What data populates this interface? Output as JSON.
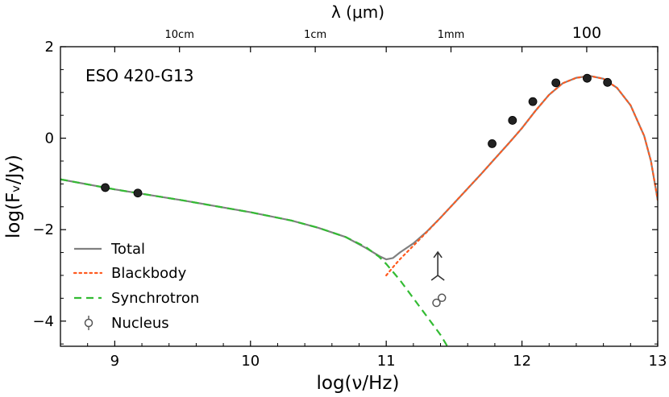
{
  "chart_data": {
    "type": "scatter",
    "annotation": "ESO 420-G13",
    "xlabel": "log(ν/Hz)",
    "ylabel": "log(Fᵥ/Jy)",
    "top_axis_label": "λ (μm)",
    "xlim": [
      8.6,
      13.0
    ],
    "ylim": [
      -4.55,
      2.0
    ],
    "x_ticks": [
      "9",
      "10",
      "11",
      "12",
      "13"
    ],
    "x_tick_values": [
      9,
      10,
      11,
      12,
      13
    ],
    "y_ticks": [
      "2",
      "0",
      "−2",
      "−4"
    ],
    "y_tick_values": [
      2,
      0,
      -2,
      -4
    ],
    "top_ticks": [
      {
        "label": "10cm",
        "log_nu": 9.477
      },
      {
        "label": "1cm",
        "log_nu": 10.477
      },
      {
        "label": "1mm",
        "log_nu": 11.477
      },
      {
        "label": "100",
        "log_nu": 12.477
      }
    ],
    "legend_position": "lower-left",
    "legend": [
      {
        "label": "Total",
        "style": "solid",
        "color": "#808080"
      },
      {
        "label": "Blackbody",
        "style": "dotted",
        "color": "#ff5a1f"
      },
      {
        "label": "Synchrotron",
        "style": "dashed",
        "color": "#33bb33"
      },
      {
        "label": "Nucleus",
        "style": "marker-open",
        "color": "#555555"
      }
    ],
    "series": [
      {
        "points": [
          {
            "x": 8.93,
            "y": -1.08
          },
          {
            "x": 9.17,
            "y": -1.2
          },
          {
            "x": 11.78,
            "y": -0.12
          },
          {
            "x": 11.93,
            "y": 0.39
          },
          {
            "x": 12.08,
            "y": 0.8
          },
          {
            "x": 12.25,
            "y": 1.21
          },
          {
            "x": 12.48,
            "y": 1.31
          },
          {
            "x": 12.63,
            "y": 1.22
          }
        ]
      },
      {
        "points": [
          {
            "x": 11.41,
            "y": -3.49
          },
          {
            "x": 11.37,
            "y": -3.6
          }
        ],
        "lower_limit": {
          "x": 11.38,
          "y": -3.0
        }
      }
    ],
    "curves": {
      "Synchrotron": [
        [
          8.6,
          -0.9
        ],
        [
          9.0,
          -1.12
        ],
        [
          9.5,
          -1.36
        ],
        [
          10.0,
          -1.62
        ],
        [
          10.3,
          -1.8
        ],
        [
          10.5,
          -1.96
        ],
        [
          10.7,
          -2.16
        ],
        [
          10.85,
          -2.38
        ],
        [
          10.95,
          -2.6
        ],
        [
          11.0,
          -2.75
        ],
        [
          11.1,
          -3.1
        ],
        [
          11.2,
          -3.5
        ],
        [
          11.3,
          -3.9
        ],
        [
          11.4,
          -4.3
        ],
        [
          11.45,
          -4.55
        ]
      ],
      "Blackbody": [
        [
          11.0,
          -3.0
        ],
        [
          11.05,
          -2.82
        ],
        [
          11.1,
          -2.65
        ],
        [
          11.2,
          -2.35
        ],
        [
          11.3,
          -2.05
        ],
        [
          11.4,
          -1.74
        ],
        [
          11.5,
          -1.42
        ],
        [
          11.6,
          -1.1
        ],
        [
          11.7,
          -0.78
        ],
        [
          11.8,
          -0.45
        ],
        [
          11.9,
          -0.12
        ],
        [
          12.0,
          0.22
        ],
        [
          12.1,
          0.6
        ],
        [
          12.2,
          0.95
        ],
        [
          12.3,
          1.2
        ],
        [
          12.4,
          1.32
        ],
        [
          12.5,
          1.36
        ],
        [
          12.6,
          1.3
        ],
        [
          12.7,
          1.1
        ],
        [
          12.8,
          0.72
        ],
        [
          12.9,
          0.05
        ],
        [
          12.95,
          -0.5
        ],
        [
          13.0,
          -1.35
        ]
      ],
      "Total": [
        [
          8.6,
          -0.9
        ],
        [
          9.0,
          -1.12
        ],
        [
          9.5,
          -1.36
        ],
        [
          10.0,
          -1.62
        ],
        [
          10.3,
          -1.8
        ],
        [
          10.5,
          -1.96
        ],
        [
          10.7,
          -2.16
        ],
        [
          10.85,
          -2.4
        ],
        [
          10.95,
          -2.58
        ],
        [
          11.0,
          -2.65
        ],
        [
          11.05,
          -2.62
        ],
        [
          11.1,
          -2.5
        ],
        [
          11.2,
          -2.3
        ],
        [
          11.3,
          -2.04
        ],
        [
          11.4,
          -1.74
        ],
        [
          11.5,
          -1.42
        ],
        [
          11.6,
          -1.1
        ],
        [
          11.7,
          -0.78
        ],
        [
          11.8,
          -0.45
        ],
        [
          11.9,
          -0.12
        ],
        [
          12.0,
          0.22
        ],
        [
          12.1,
          0.6
        ],
        [
          12.2,
          0.95
        ],
        [
          12.3,
          1.2
        ],
        [
          12.4,
          1.32
        ],
        [
          12.5,
          1.36
        ],
        [
          12.6,
          1.3
        ],
        [
          12.7,
          1.1
        ],
        [
          12.8,
          0.72
        ],
        [
          12.9,
          0.05
        ],
        [
          12.95,
          -0.5
        ],
        [
          13.0,
          -1.35
        ]
      ]
    },
    "colors": {
      "total": "#808080",
      "blackbody": "#ff5a1f",
      "synchrotron": "#33bb33",
      "photometry": "#222222",
      "nucleus": "#555555"
    }
  }
}
